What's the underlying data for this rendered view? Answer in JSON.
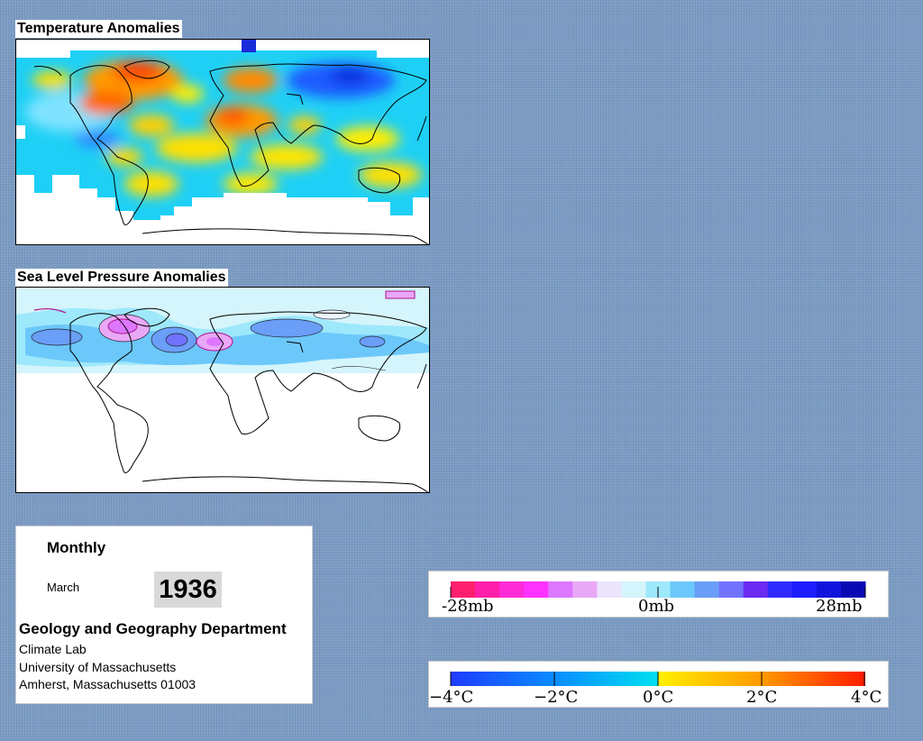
{
  "temperature_panel": {
    "title": "Temperature Anomalies"
  },
  "pressure_panel": {
    "title": "Sea Level Pressure Anomalies"
  },
  "info": {
    "frequency": "Monthly",
    "month": "March",
    "year": "1936",
    "department": "Geology and Geography Department",
    "lines": [
      "Climate Lab",
      "University of Massachusetts",
      "Amherst, Massachusetts 01003"
    ]
  },
  "pressure_legend": {
    "colors": [
      "#ff1f6f",
      "#ff1fa8",
      "#ff2bd6",
      "#ff33ff",
      "#dd77ff",
      "#e9a8f6",
      "#ece4fb",
      "#d4f5fb",
      "#9ee8fb",
      "#6cc8fa",
      "#6a9ef7",
      "#7173ff",
      "#6b2bf3",
      "#2f2bff",
      "#1d1dff",
      "#1014dd",
      "#0a0ab4"
    ],
    "labels": [
      "-28mb",
      "0mb",
      "28mb"
    ]
  },
  "temperature_legend": {
    "colors_hex": {
      "min": "#1f3bff",
      "mid_cool": "#00c8f0",
      "zero": "#fff000",
      "max": "#ff1a00"
    },
    "labels": [
      "−4°C",
      "−2°C",
      "0°C",
      "2°C",
      "4°C"
    ]
  }
}
